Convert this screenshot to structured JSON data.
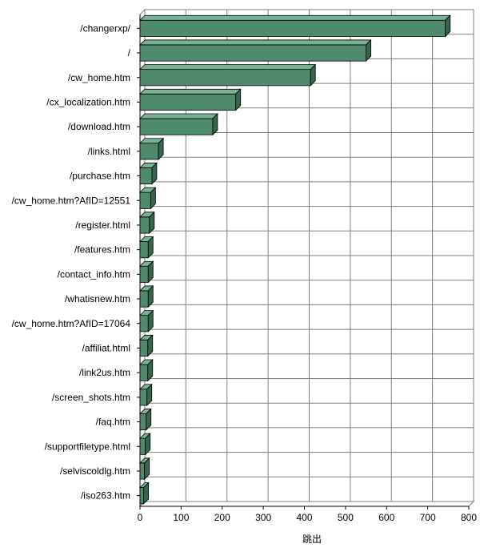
{
  "chart_data": {
    "type": "bar",
    "orientation": "horizontal",
    "style": "3d",
    "categories": [
      "/changerxp/",
      "/",
      "/cw_home.htm",
      "/cx_localization.htm",
      "/download.htm",
      "/links.html",
      "/purchase.htm",
      "/cw_home.htm?AfID=12551",
      "/register.html",
      "/features.htm",
      "/contact_info.htm",
      "/whatisnew.htm",
      "/cw_home.htm?AfID=17064",
      "/affiliat.html",
      "/link2us.htm",
      "/screen_shots.htm",
      "/faq.htm",
      "/supportfiletype.html",
      "/selviscoldlg.htm",
      "/iso263.htm"
    ],
    "values": [
      743,
      550,
      415,
      233,
      177,
      45,
      29,
      26,
      23,
      20,
      20,
      20,
      20,
      19,
      19,
      17,
      15,
      13,
      11,
      9
    ],
    "xlabel": "跳出",
    "ylabel": "",
    "title": "",
    "xlim": [
      0,
      800
    ],
    "xticks": [
      0,
      100,
      200,
      300,
      400,
      500,
      600,
      700,
      800
    ],
    "grid": true,
    "legend": "none",
    "bar_color": "#4e8a6c",
    "bar_top_color": "#78b294",
    "bar_side_color": "#36644c"
  }
}
